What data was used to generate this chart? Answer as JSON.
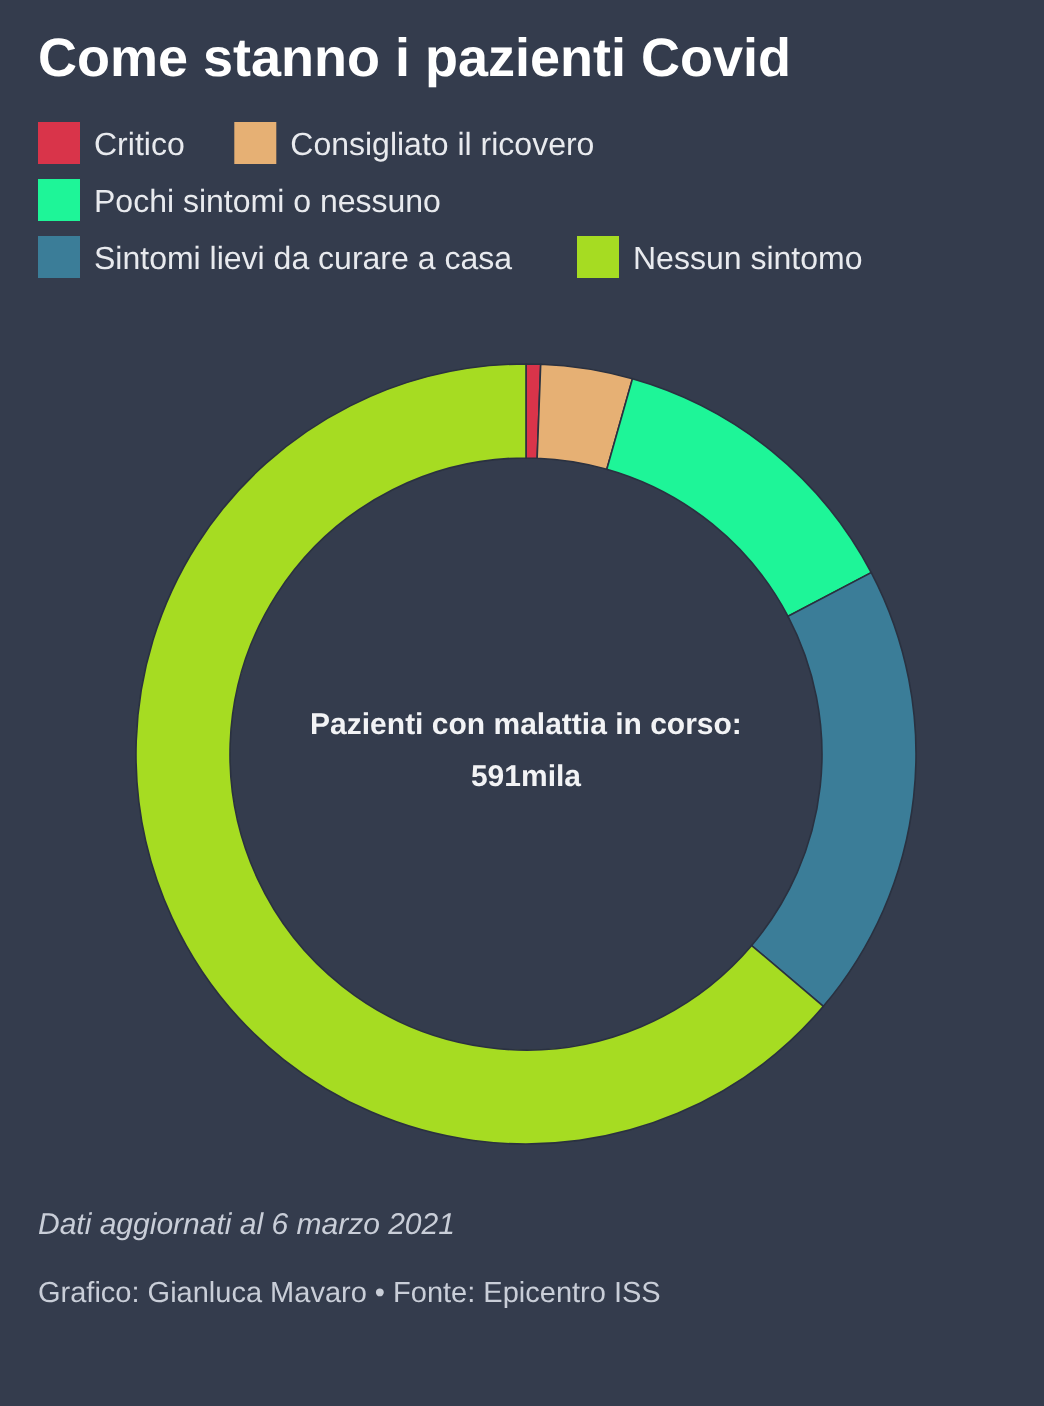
{
  "chart_data": {
    "type": "donut",
    "title": "Come stanno i pazienti Covid",
    "categories": [
      "Critico",
      "Consigliato il ricovero",
      "Pochi sintomi o nessuno",
      "Sintomi lievi da curare a casa",
      "Nessun sintomo"
    ],
    "values": [
      0.6,
      3.8,
      12.9,
      18.9,
      63.8
    ],
    "colors": [
      "#d9344a",
      "#e6b074",
      "#1ef598",
      "#3b7d98",
      "#a6dc22"
    ],
    "legend": "top",
    "annotations": [
      "Pazienti con malattia in corso:\n591mila",
      "Dati aggiornati al 6 marzo 2021",
      "Grafico: Gianluca Mavaro • Fonte: Epicentro ISS"
    ]
  }
}
